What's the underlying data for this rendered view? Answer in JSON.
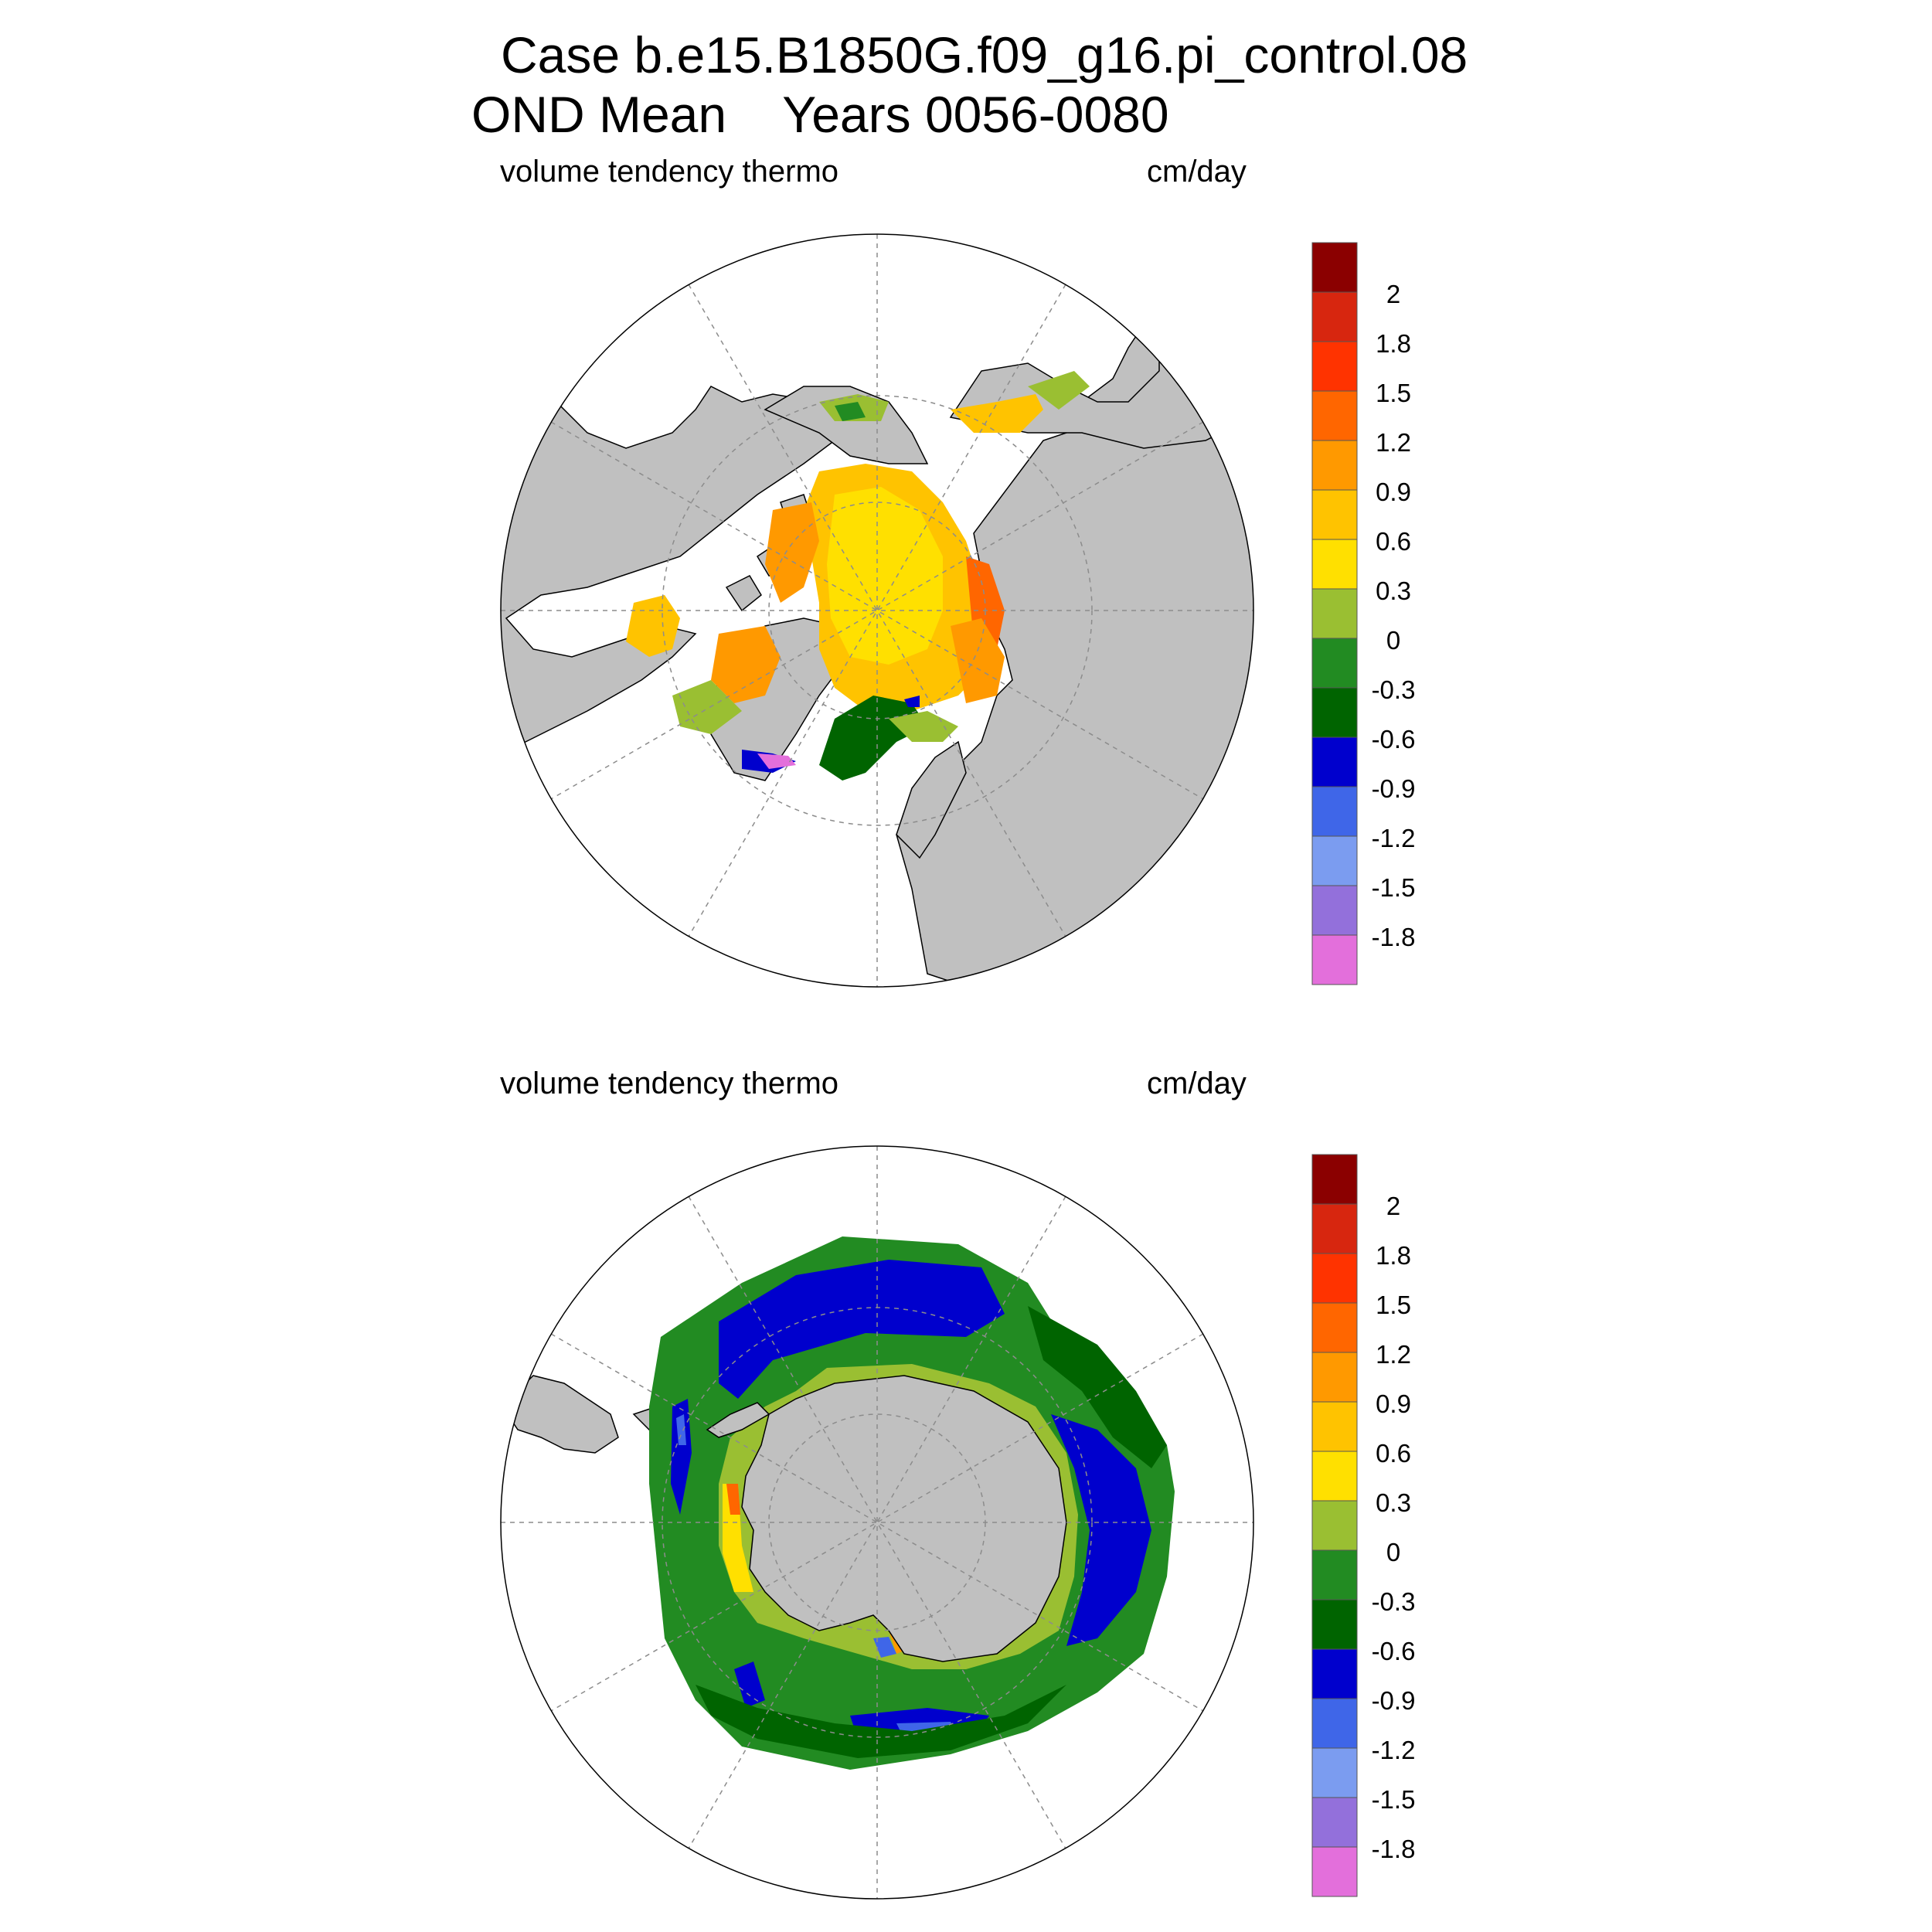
{
  "title": {
    "line1": "Case b.e15.B1850G.f09_g16.pi_control.08",
    "line2": "OND Mean    Years 0056-0080"
  },
  "panels": [
    {
      "id": "north",
      "hemisphere": "Northern Hemisphere polar stereographic",
      "variable_label": "volume tendency thermo",
      "units_label": "cm/day",
      "dominant_bins": [
        "0.3 to 0.6",
        "0.6 to 0.9",
        "0.9 to 1.2",
        "-0.6 to -0.3",
        "0 to 0.3"
      ]
    },
    {
      "id": "south",
      "hemisphere": "Southern Hemisphere polar stereographic",
      "variable_label": "volume tendency thermo",
      "units_label": "cm/day",
      "dominant_bins": [
        "-0.3 to 0",
        "-0.6 to -0.3",
        "-0.9 to -0.6",
        "0 to 0.3",
        "0.3 to 0.6"
      ]
    }
  ],
  "colorbar": {
    "labels": [
      "2",
      "1.8",
      "1.5",
      "1.2",
      "0.9",
      "0.6",
      "0.3",
      "0",
      "-0.3",
      "-0.6",
      "-0.9",
      "-1.2",
      "-1.5",
      "-1.8"
    ],
    "colors_top_to_bottom": [
      "#8b0000",
      "#d7260f",
      "#ff3300",
      "#ff6600",
      "#ff9900",
      "#ffc300",
      "#ffe000",
      "#9abf32",
      "#228b22",
      "#006400",
      "#0000cd",
      "#3f66e8",
      "#7b9cf0",
      "#9370db",
      "#e36fdb"
    ]
  },
  "map_colors": {
    "land": "#c0c0c0",
    "ocean_no_ice": "#ffffff",
    "grid": "#8c8c8c"
  }
}
